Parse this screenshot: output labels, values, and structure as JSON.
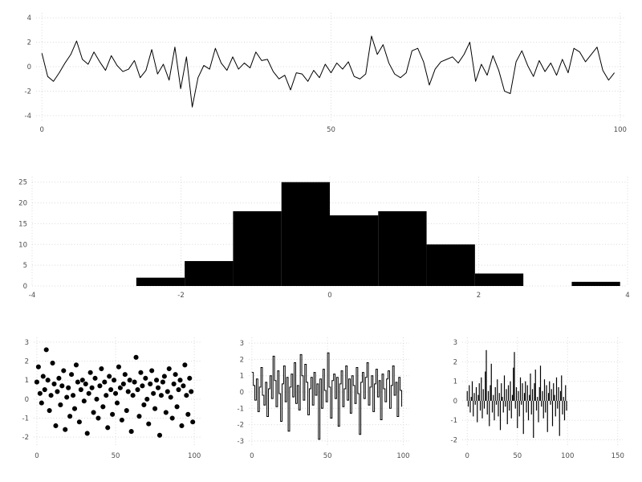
{
  "figure": {
    "background": "#ffffff",
    "grid_color": "#d9d9d9",
    "tick_label_color": "#4d4d4d",
    "series_color": "#000000"
  },
  "chart_data": [
    {
      "id": "noise-line",
      "type": "line",
      "title": "",
      "x_start": 0,
      "x_step": 1,
      "values": [
        1.1,
        -0.8,
        -1.2,
        -0.5,
        0.3,
        1.0,
        2.1,
        0.6,
        0.2,
        1.2,
        0.4,
        -0.3,
        0.9,
        0.1,
        -0.4,
        -0.2,
        0.5,
        -0.9,
        -0.3,
        1.4,
        -0.6,
        0.2,
        -1.1,
        1.6,
        -1.8,
        0.8,
        -3.3,
        -0.9,
        0.1,
        -0.2,
        1.5,
        0.3,
        -0.3,
        0.8,
        -0.2,
        0.3,
        -0.1,
        1.2,
        0.5,
        0.6,
        -0.4,
        -1.0,
        -0.7,
        -1.9,
        -0.5,
        -0.6,
        -1.2,
        -0.3,
        -0.9,
        0.2,
        -0.5,
        0.3,
        -0.2,
        0.4,
        -0.8,
        -1.0,
        -0.6,
        2.5,
        1.0,
        1.8,
        0.3,
        -0.6,
        -0.9,
        -0.5,
        1.3,
        1.5,
        0.4,
        -1.5,
        -0.2,
        0.4,
        0.6,
        0.8,
        0.3,
        1.0,
        2.0,
        -1.2,
        0.2,
        -0.7,
        0.9,
        -0.3,
        -2.0,
        -2.2,
        0.4,
        1.3,
        0.1,
        -0.8,
        0.5,
        -0.4,
        0.3,
        -0.7,
        0.6,
        -0.5,
        1.5,
        1.2,
        0.4,
        1.0,
        1.6,
        -0.3,
        -1.1,
        -0.5
      ],
      "xlim": [
        -1,
        101
      ],
      "ylim": [
        -4.4,
        4.4
      ],
      "xticks": [
        0,
        50,
        100
      ],
      "yticks": [
        -4,
        -2,
        0,
        2,
        4
      ],
      "grid": true,
      "line_width": 1
    },
    {
      "id": "histogram",
      "type": "bar",
      "subtype": "histogram",
      "title": "",
      "bin_edges": [
        -2.6,
        -1.95,
        -1.3,
        -0.65,
        0,
        0.65,
        1.3,
        1.95,
        2.6,
        3.25,
        3.9
      ],
      "counts": [
        2,
        6,
        18,
        25,
        17,
        18,
        10,
        3,
        0,
        1
      ],
      "xlim": [
        -4,
        4
      ],
      "ylim": [
        0,
        26.3
      ],
      "xticks": [
        -4,
        -2,
        0,
        2,
        4
      ],
      "yticks": [
        0,
        5,
        10,
        15,
        20,
        25
      ],
      "grid": true
    },
    {
      "id": "scatter",
      "type": "scatter",
      "x_start": 0,
      "x_step": 1,
      "values": [
        0.9,
        1.7,
        0.3,
        -0.2,
        1.2,
        0.5,
        2.6,
        1.0,
        -0.6,
        0.2,
        1.9,
        0.8,
        -1.4,
        0.4,
        1.1,
        -0.3,
        0.7,
        1.5,
        -1.6,
        0.1,
        0.6,
        -0.9,
        1.3,
        0.2,
        -0.5,
        1.8,
        0.9,
        -1.2,
        0.5,
        1.0,
        -0.1,
        0.8,
        -1.8,
        0.3,
        1.4,
        0.6,
        -0.7,
        1.1,
        0.0,
        -1.0,
        0.7,
        1.6,
        -0.4,
        0.9,
        0.2,
        -1.5,
        1.2,
        0.5,
        -0.8,
        1.0,
        0.3,
        -0.2,
        1.7,
        0.6,
        -1.1,
        0.8,
        1.3,
        -0.6,
        0.4,
        1.0,
        -1.7,
        0.2,
        0.9,
        2.2,
        0.5,
        -0.9,
        1.4,
        0.7,
        -0.3,
        1.1,
        0.0,
        -1.3,
        0.8,
        1.5,
        0.3,
        -0.5,
        1.0,
        0.6,
        -1.9,
        0.2,
        0.9,
        1.2,
        -0.7,
        0.4,
        1.6,
        0.1,
        -1.0,
        0.8,
        1.3,
        -0.4,
        0.5,
        1.0,
        -1.4,
        0.7,
        1.8,
        0.2,
        -0.8,
        1.1,
        0.4,
        -1.2
      ],
      "xlim": [
        -2,
        104
      ],
      "ylim": [
        -2.5,
        3.25
      ],
      "xticks": [
        0,
        50,
        100
      ],
      "yticks": [
        -2,
        -1,
        0,
        1,
        2,
        3
      ],
      "marker_radius": 3.4,
      "grid": true
    },
    {
      "id": "step",
      "type": "line",
      "style": "step",
      "x_start": 0,
      "x_step": 1,
      "values": [
        1.2,
        0.4,
        -0.5,
        0.8,
        -1.2,
        0.3,
        1.5,
        -0.2,
        -0.8,
        0.6,
        -1.5,
        0.2,
        1.0,
        -0.4,
        2.2,
        0.7,
        -0.9,
        1.3,
        -0.1,
        -1.8,
        0.5,
        1.6,
        -0.6,
        0.9,
        -2.4,
        0.3,
        1.1,
        -0.3,
        1.8,
        -0.7,
        0.4,
        -1.1,
        2.3,
        1.0,
        -0.5,
        1.7,
        0.6,
        -1.4,
        0.2,
        0.9,
        -0.8,
        1.2,
        -0.2,
        0.5,
        -2.9,
        0.8,
        -1.0,
        1.4,
        0.1,
        -0.6,
        2.4,
        0.3,
        -1.6,
        0.7,
        1.1,
        -0.4,
        0.9,
        -2.1,
        0.5,
        1.3,
        -0.9,
        0.2,
        1.6,
        -0.5,
        0.8,
        -1.3,
        1.0,
        0.4,
        -0.7,
        1.5,
        -0.1,
        -2.6,
        0.6,
        1.2,
        -0.4,
        0.9,
        1.8,
        -0.8,
        0.3,
        1.0,
        -1.2,
        0.5,
        1.4,
        -0.3,
        0.7,
        -1.7,
        1.1,
        0.2,
        -0.6,
        0.8,
        1.3,
        -1.0,
        0.4,
        1.6,
        -0.2,
        0.6,
        -1.5,
        0.9,
        0.1,
        -0.9
      ],
      "xlim": [
        -2,
        104
      ],
      "ylim": [
        -3.35,
        3.35
      ],
      "xticks": [
        0,
        50,
        100
      ],
      "yticks": [
        -3,
        -2,
        -1,
        0,
        1,
        2,
        3
      ],
      "grid": true
    },
    {
      "id": "stem",
      "type": "bar",
      "subtype": "stem",
      "x_start": 0,
      "x_step": 1,
      "values": [
        0.5,
        -0.3,
        0.8,
        -0.6,
        0.2,
        1.0,
        -0.8,
        0.4,
        -0.2,
        0.7,
        -1.1,
        0.3,
        0.9,
        -0.5,
        1.2,
        -0.9,
        0.6,
        -0.4,
        1.5,
        2.6,
        -0.7,
        0.5,
        -1.3,
        0.8,
        1.9,
        -0.6,
        0.3,
        -1.0,
        0.7,
        -0.2,
        1.1,
        -0.8,
        0.4,
        -1.5,
        0.9,
        0.2,
        -0.6,
        1.3,
        -0.3,
        0.6,
        -1.2,
        0.8,
        -0.5,
        1.0,
        -0.9,
        0.3,
        1.7,
        2.5,
        -0.4,
        0.7,
        -1.4,
        0.5,
        -0.8,
        1.2,
        -0.2,
        0.9,
        -1.7,
        0.4,
        1.0,
        -0.6,
        0.8,
        -1.0,
        0.3,
        1.4,
        -0.7,
        0.6,
        -1.9,
        0.9,
        1.6,
        -0.5,
        0.2,
        -1.1,
        0.7,
        1.8,
        -0.3,
        0.5,
        -0.9,
        1.1,
        -0.6,
        0.8,
        -1.6,
        0.4,
        1.0,
        -0.2,
        0.6,
        -1.3,
        0.9,
        0.3,
        -0.8,
        1.2,
        -0.4,
        0.7,
        -1.8,
        0.5,
        1.3,
        -0.7,
        0.2,
        -1.0,
        0.8,
        -0.5
      ],
      "xlim": [
        -5,
        155
      ],
      "ylim": [
        -2.35,
        3.25
      ],
      "xticks": [
        0,
        50,
        100,
        150
      ],
      "yticks": [
        -2,
        -1,
        0,
        1,
        2,
        3
      ],
      "grid": true
    }
  ]
}
